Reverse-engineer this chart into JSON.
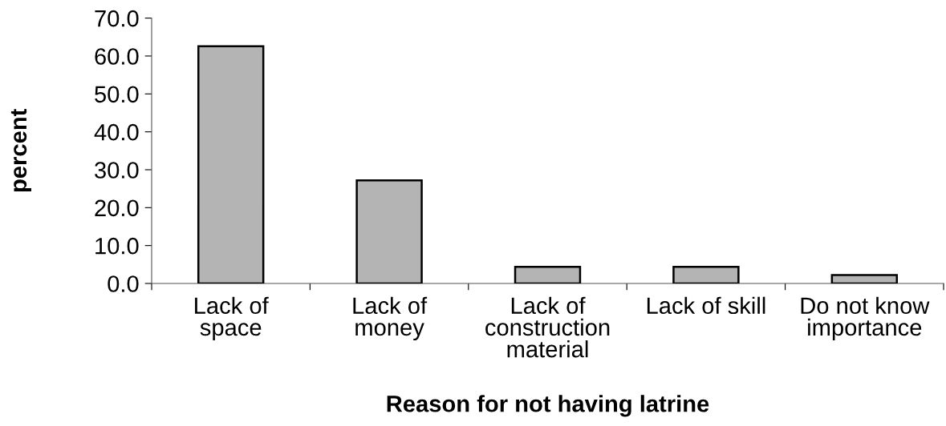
{
  "chart_data": {
    "type": "bar",
    "xlabel": "Reason for not having latrine",
    "ylabel": "percent",
    "categories": [
      "Lack of\nspace",
      "Lack of\nmoney",
      "Lack of\nconstruction\nmaterial",
      "Lack of skill",
      "Do not know\nimportance"
    ],
    "values": [
      62.6,
      27.2,
      4.4,
      4.4,
      2.2
    ],
    "color": "#b4b4b4",
    "ylim": [
      0,
      70
    ],
    "yticks": [
      {
        "value": 0,
        "label": "0.0"
      },
      {
        "value": 10,
        "label": "10.0"
      },
      {
        "value": 20,
        "label": "20.0"
      },
      {
        "value": 30,
        "label": "30.0"
      },
      {
        "value": 40,
        "label": "40.0"
      },
      {
        "value": 50,
        "label": "50.0"
      },
      {
        "value": 60,
        "label": "60.0"
      },
      {
        "value": 70,
        "label": "70.0"
      }
    ],
    "grid": false,
    "legend": false
  }
}
